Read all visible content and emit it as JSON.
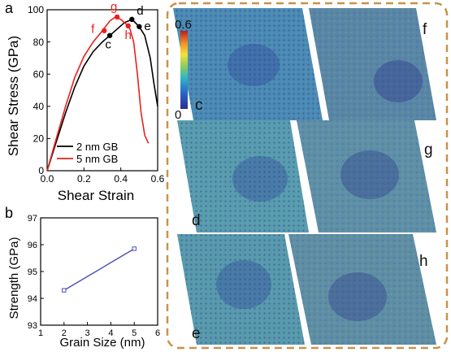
{
  "figure": {
    "panel_a": {
      "letter": "a",
      "ylabel": "Shear Stress (GPa)",
      "xlabel": "Shear Strain",
      "point_labels": [
        "c",
        "d",
        "e",
        "f",
        "g",
        "h"
      ]
    },
    "panel_b": {
      "letter": "b",
      "ylabel": "Strength (GPa)",
      "xlabel": "Grain Size (nm)"
    },
    "snapshots": {
      "colorbar_max": "0.6",
      "colorbar_min": "0",
      "labels": [
        "c",
        "f",
        "g",
        "d",
        "e",
        "h"
      ],
      "frame_color": "#c8924c"
    }
  },
  "chart_data": [
    {
      "type": "line",
      "panel": "a",
      "xlabel": "Shear Strain",
      "ylabel": "Shear Stress (GPa)",
      "xlim": [
        0,
        0.6
      ],
      "ylim": [
        0,
        100
      ],
      "xticks": [
        0,
        0.2,
        0.4,
        0.6
      ],
      "yticks": [
        0,
        20,
        40,
        60,
        80,
        100
      ],
      "xtick_labels": [
        "0.0",
        "0.2",
        "0.4",
        "0.6"
      ],
      "ytick_labels": [
        "0",
        "20",
        "40",
        "60",
        "80",
        "100"
      ],
      "legend_position": "bottom-left",
      "series": [
        {
          "name": "2 nm GB",
          "color": "#000000",
          "x": [
            0.0,
            0.05,
            0.1,
            0.15,
            0.2,
            0.25,
            0.3,
            0.34,
            0.38,
            0.42,
            0.45,
            0.47,
            0.5,
            0.53,
            0.56,
            0.58,
            0.6
          ],
          "y": [
            0,
            18,
            36,
            52,
            65,
            74,
            80,
            84,
            88,
            92,
            93.5,
            93,
            89.5,
            84,
            70,
            54,
            40
          ],
          "markers": [
            {
              "label": "c",
              "x": 0.34,
              "y": 84
            },
            {
              "label": "d",
              "x": 0.46,
              "y": 94
            },
            {
              "label": "e",
              "x": 0.5,
              "y": 89.5
            }
          ]
        },
        {
          "name": "5 nm GB",
          "color": "#e8211d",
          "x": [
            0.0,
            0.05,
            0.1,
            0.15,
            0.2,
            0.25,
            0.3,
            0.34,
            0.37,
            0.4,
            0.43,
            0.45,
            0.47,
            0.49,
            0.51,
            0.53,
            0.55
          ],
          "y": [
            0,
            20,
            40,
            58,
            71,
            80,
            87,
            93,
            95.5,
            94,
            91,
            88,
            80,
            60,
            36,
            22,
            17
          ],
          "markers": [
            {
              "label": "f",
              "x": 0.31,
              "y": 87
            },
            {
              "label": "g",
              "x": 0.38,
              "y": 95.5
            },
            {
              "label": "h",
              "x": 0.44,
              "y": 90
            }
          ]
        }
      ]
    },
    {
      "type": "line",
      "panel": "b",
      "xlabel": "Grain Size (nm)",
      "ylabel": "Strength (GPa)",
      "xlim": [
        1,
        6
      ],
      "ylim": [
        93,
        97
      ],
      "xticks": [
        1,
        2,
        3,
        4,
        5,
        6
      ],
      "yticks": [
        93,
        94,
        95,
        96,
        97
      ],
      "xtick_labels": [
        "1",
        "2",
        "3",
        "4",
        "5",
        "6"
      ],
      "ytick_labels": [
        "93",
        "94",
        "95",
        "96",
        "97"
      ],
      "series": [
        {
          "color": "#4a4fb5",
          "x": [
            2,
            5
          ],
          "y": [
            94.3,
            95.85
          ]
        }
      ]
    }
  ]
}
